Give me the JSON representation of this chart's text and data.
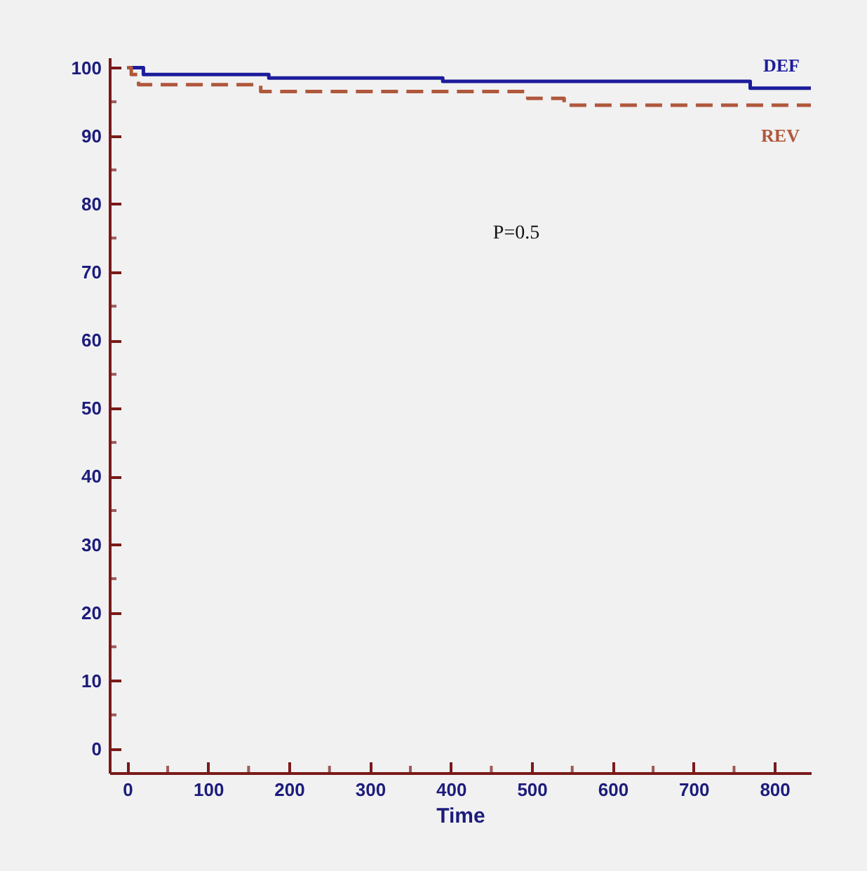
{
  "chart_data": {
    "type": "step",
    "xlabel": "Time",
    "annotations": [
      "P=0.5"
    ],
    "xlim": [
      -22,
      845
    ],
    "ylim": [
      -3.5,
      101.5
    ],
    "xticks": [
      0,
      {
        "value": 50,
        "label": null
      },
      100,
      {
        "value": 150,
        "label": null
      },
      200,
      {
        "value": 250,
        "label": null
      },
      300,
      {
        "value": 350,
        "label": null
      },
      400,
      {
        "value": 450,
        "label": null
      },
      500,
      {
        "value": 550,
        "label": null
      },
      600,
      {
        "value": 650,
        "label": null
      },
      700,
      {
        "value": 750,
        "label": null
      },
      800
    ],
    "yticks": [
      0,
      {
        "value": 5,
        "label": null
      },
      10,
      {
        "value": 15,
        "label": null
      },
      20,
      {
        "value": 25,
        "label": null
      },
      30,
      {
        "value": 35,
        "label": null
      },
      40,
      {
        "value": 45,
        "label": null
      },
      50,
      {
        "value": 55,
        "label": null
      },
      60,
      {
        "value": 65,
        "label": null
      },
      70,
      {
        "value": 75,
        "label": null
      },
      80,
      {
        "value": 85,
        "label": null
      },
      90,
      {
        "value": 95,
        "label": null
      },
      100
    ],
    "series": [
      {
        "name": "DEF",
        "color": "#1c1c9c",
        "line_style": "solid",
        "x": [
          0,
          20,
          175,
          390,
          770,
          845
        ],
        "values": [
          100,
          99,
          98.5,
          98,
          97,
          97
        ]
      },
      {
        "name": "REV",
        "color": "#b0583c",
        "line_style": "dashed",
        "x": [
          0,
          5,
          14,
          165,
          495,
          540,
          845
        ],
        "values": [
          100,
          99,
          97.5,
          96.5,
          95.5,
          94.5,
          94.5
        ]
      }
    ]
  }
}
